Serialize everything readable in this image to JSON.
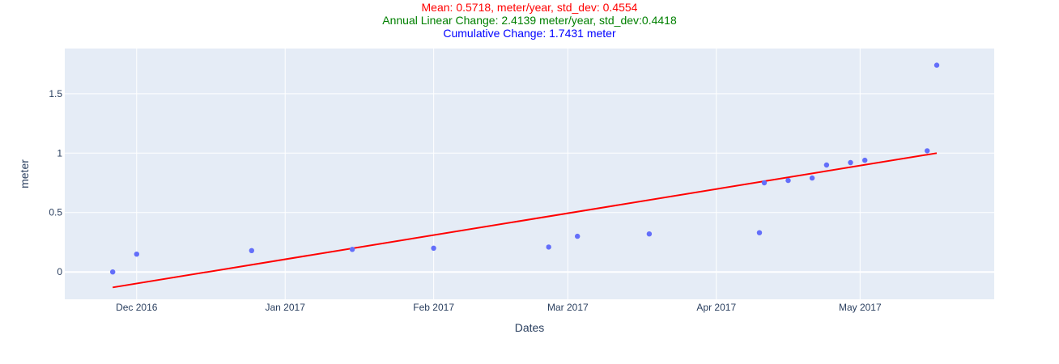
{
  "chart_data": {
    "type": "scatter",
    "title_lines": [
      {
        "text": "Mean: 0.5718, meter/year, std_dev: 0.4554",
        "color": "#ff0000"
      },
      {
        "text": "Annual Linear Change: 2.4139 meter/year, std_dev:0.4418",
        "color": "#008000"
      },
      {
        "text": "Cumulative Change: 1.7431 meter",
        "color": "#0000ff"
      }
    ],
    "xlabel": "Dates",
    "ylabel": "meter",
    "x_range": [
      "2016-11-16",
      "2017-05-29"
    ],
    "ylim": [
      -0.23,
      1.88
    ],
    "x_ticks": [
      {
        "date": "2016-12-01",
        "label": "Dec 2016"
      },
      {
        "date": "2017-01-01",
        "label": "Jan 2017"
      },
      {
        "date": "2017-02-01",
        "label": "Feb 2017"
      },
      {
        "date": "2017-03-01",
        "label": "Mar 2017"
      },
      {
        "date": "2017-04-01",
        "label": "Apr 2017"
      },
      {
        "date": "2017-05-01",
        "label": "May 2017"
      }
    ],
    "y_ticks": [
      {
        "value": 0,
        "label": "0"
      },
      {
        "value": 0.5,
        "label": "0.5"
      },
      {
        "value": 1,
        "label": "1"
      },
      {
        "value": 1.5,
        "label": "1.5"
      }
    ],
    "grid": true,
    "plot_background": "#e5ecf6",
    "series": [
      {
        "mode": "markers",
        "color": "#636efa",
        "x": [
          "2016-11-26",
          "2016-12-01",
          "2016-12-25",
          "2017-01-15",
          "2017-02-01",
          "2017-02-25",
          "2017-03-03",
          "2017-03-18",
          "2017-04-10",
          "2017-04-11",
          "2017-04-16",
          "2017-04-21",
          "2017-04-24",
          "2017-04-29",
          "2017-05-02",
          "2017-05-15",
          "2017-05-17"
        ],
        "y": [
          0.0,
          0.15,
          0.18,
          0.19,
          0.2,
          0.21,
          0.3,
          0.32,
          0.33,
          0.75,
          0.77,
          0.79,
          0.9,
          0.92,
          0.94,
          1.02,
          1.74
        ]
      },
      {
        "mode": "lines",
        "color": "#ff0000",
        "x": [
          "2016-11-26",
          "2017-05-17"
        ],
        "y": [
          -0.13,
          1.0
        ]
      }
    ]
  }
}
